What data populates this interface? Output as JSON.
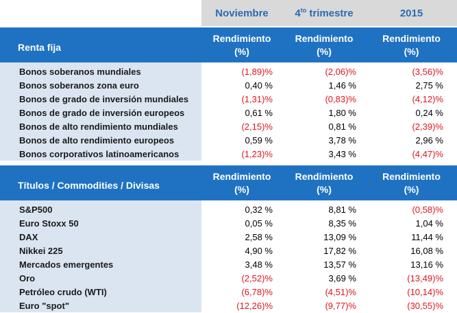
{
  "periods": {
    "november": "Noviembre",
    "q4_prefix": "4",
    "q4_sup": "to",
    "q4_suffix": " trimestre",
    "year": "2015"
  },
  "column_header": {
    "line1": "Rendimiento",
    "line2": "(%)"
  },
  "fixed_income": {
    "title": "Renta fija",
    "rows": [
      {
        "label": "Bonos soberanos mundiales",
        "nov": "(1,89)%",
        "q4": "(2,06)%",
        "y2015": "(3,56)%"
      },
      {
        "label": "Bonos soberanos zona euro",
        "nov": "0,40 %",
        "q4": "1,46 %",
        "y2015": "2,75 %"
      },
      {
        "label": "Bonos de grado de inversión mundiales",
        "nov": "(1,31)%",
        "q4": "(0,83)%",
        "y2015": "(4,12)%"
      },
      {
        "label": "Bonos de grado de inversión europeos",
        "nov": "0,61 %",
        "q4": "1,80 %",
        "y2015": "0,24 %"
      },
      {
        "label": "Bonos de alto rendimiento mundiales",
        "nov": "(2,15)%",
        "q4": "0,81 %",
        "y2015": "(2,39)%"
      },
      {
        "label": "Bonos de alto rendimiento europeos",
        "nov": "0,59 %",
        "q4": "3,78 %",
        "y2015": "2,96 %"
      },
      {
        "label": "Bonos corporativos latinoamericanos",
        "nov": "(1,23)%",
        "q4": "3,43 %",
        "y2015": "(4,47)%"
      }
    ]
  },
  "equities": {
    "title": "Títulos / Commodities / Divisas",
    "rows": [
      {
        "label": "S&P500",
        "nov": "0,32 %",
        "q4": "8,81 %",
        "y2015": "(0,58)%"
      },
      {
        "label": "Euro Stoxx 50",
        "nov": "0,05 %",
        "q4": "8,35 %",
        "y2015": "1,04 %"
      },
      {
        "label": "DAX",
        "nov": "2,58 %",
        "q4": "13,09 %",
        "y2015": "11,44 %"
      },
      {
        "label": "Nikkei 225",
        "nov": "4,90 %",
        "q4": "17,82 %",
        "y2015": "16,08 %"
      },
      {
        "label": "Mercados emergentes",
        "nov": "3,48 %",
        "q4": "13,57 %",
        "y2015": "13,16 %"
      },
      {
        "label": "Oro",
        "nov": "(2,52)%",
        "q4": "3,69 %",
        "y2015": "(13,49)%"
      },
      {
        "label": "Petróleo crudo (WTI)",
        "nov": "(6,78)%",
        "q4": "(4,51)%",
        "y2015": "(10,14)%"
      },
      {
        "label": "Euro \"spot\"",
        "nov": "(12,26)%",
        "q4": "(9,77)%",
        "y2015": "(30,55)%"
      }
    ]
  },
  "colors": {
    "header_blue": "#1f72c2",
    "period_text": "#2d6ab0",
    "label_bg": "#dbe5f1",
    "period_bg": "#d9d9d9",
    "negative": "#e0141e"
  }
}
